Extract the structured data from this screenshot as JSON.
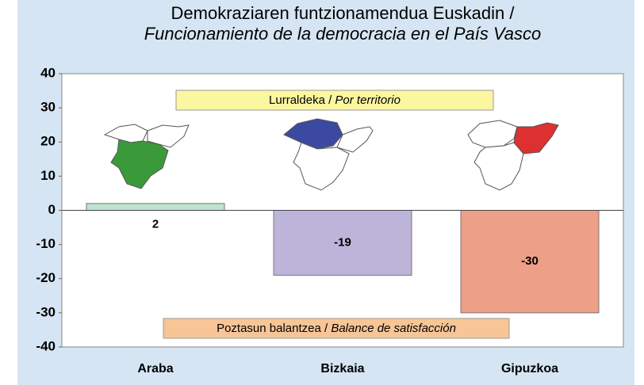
{
  "chart_data": {
    "type": "bar",
    "title": "Demokraziaren funtzionamendua Euskadin /",
    "subtitle": "Funcionamiento de la democracia en el País Vasco",
    "annotations": {
      "top": [
        "Lurraldeka / ",
        "Por territorio"
      ],
      "bottom": [
        "Poztasun balantzea / ",
        "Balance de satisfacción"
      ]
    },
    "categories": [
      "Araba",
      "Bizkaia",
      "Gipuzkoa"
    ],
    "values": [
      2,
      -19,
      -30
    ],
    "colors": [
      "#bfe3cf",
      "#bdb4da",
      "#ee9f88"
    ],
    "ylim": [
      -40,
      40
    ],
    "yticks": [
      -40,
      -30,
      -20,
      -10,
      0,
      10,
      20,
      30,
      40
    ],
    "grid": false
  }
}
